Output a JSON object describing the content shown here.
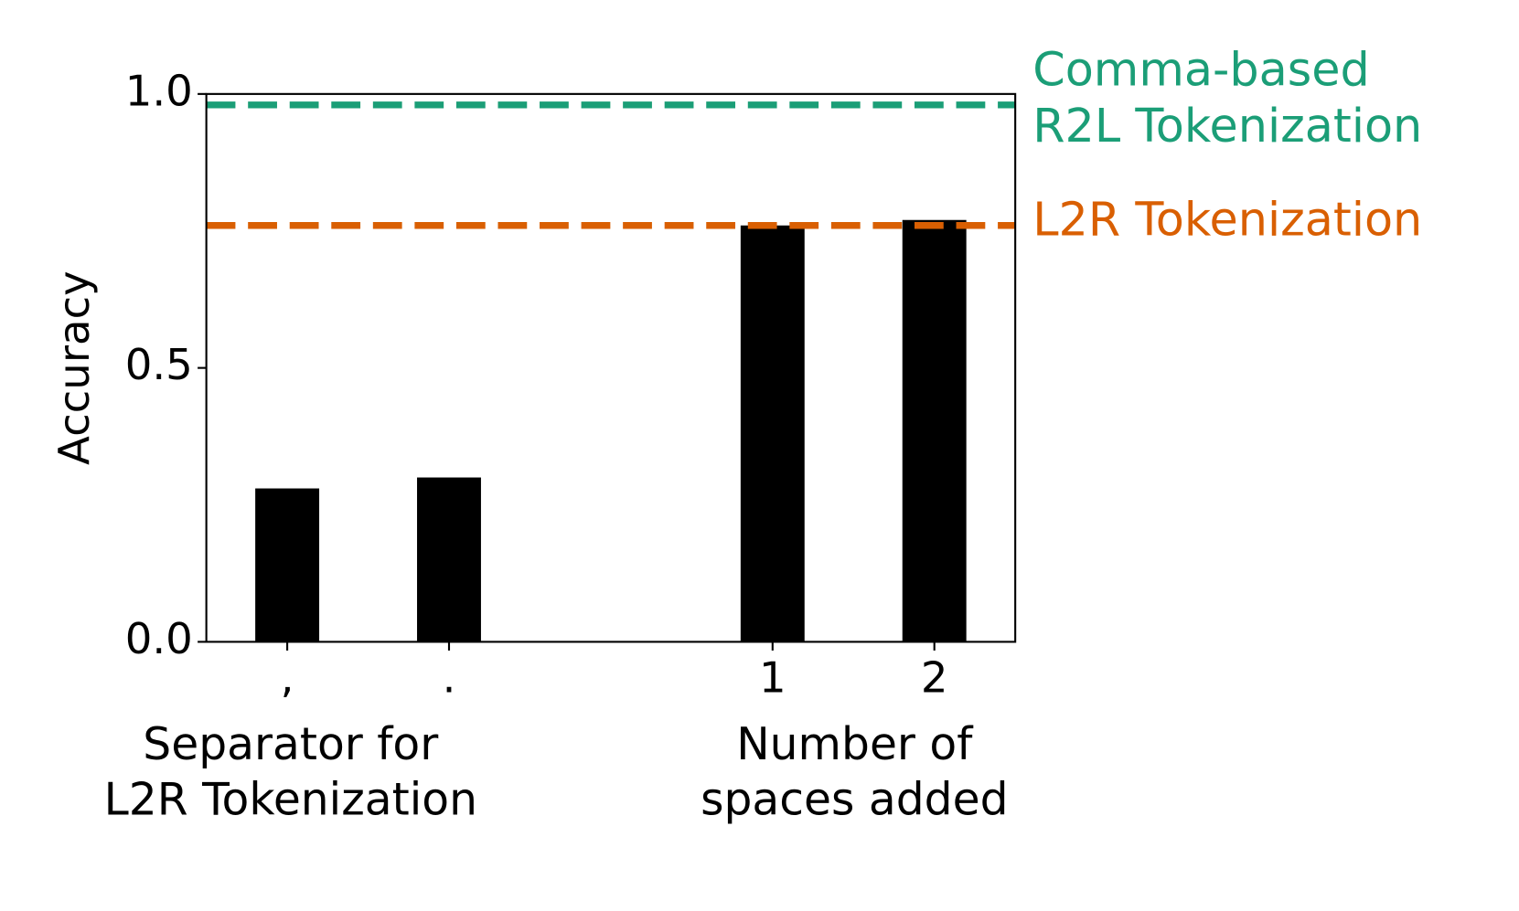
{
  "chart_data": {
    "type": "bar",
    "ylabel": "Accuracy",
    "categories": [
      ",",
      ".",
      null,
      "1",
      "2"
    ],
    "values": [
      0.28,
      0.3,
      null,
      0.76,
      0.77
    ],
    "color": "#000000",
    "ylim": [
      0,
      1
    ],
    "yticks": [
      {
        "value": 0,
        "label": "0.0"
      },
      {
        "value": 0.5,
        "label": "0.5"
      },
      {
        "value": 1,
        "label": "1.0"
      }
    ],
    "group_labels": [
      [
        "Separator for",
        "L2R Tokenization"
      ],
      [
        "Number of",
        "spaces added"
      ]
    ],
    "reference_lines": [
      {
        "name": [
          "Comma-based",
          "R2L Tokenization"
        ],
        "value": 0.98,
        "color": "#1b9e77"
      },
      {
        "name": [
          "L2R Tokenization"
        ],
        "value": 0.76,
        "color": "#d95f02"
      }
    ]
  }
}
